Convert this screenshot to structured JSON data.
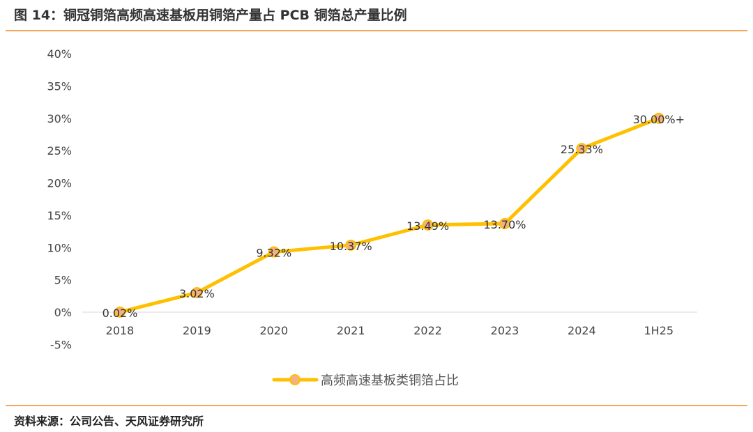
{
  "title": "图 14：铜冠铜箔高频高速基板用铜箔产量占 PCB 铜箔总产量比例",
  "source": "资料来源：公司公告、天风证券研究所",
  "colors": {
    "line": "#FFC000",
    "marker": "#F4B183",
    "rule": "#F08A24"
  },
  "chart_data": {
    "type": "line",
    "title": "铜冠铜箔高频高速基板用铜箔产量占 PCB 铜箔总产量比例",
    "categories": [
      "2018",
      "2019",
      "2020",
      "2021",
      "2022",
      "2023",
      "2024",
      "1H25"
    ],
    "series": [
      {
        "name": "高频高速基板类铜箔占比",
        "values": [
          0.02,
          3.02,
          9.32,
          10.37,
          13.49,
          13.7,
          25.33,
          30.0
        ]
      }
    ],
    "data_labels": [
      "0.02%",
      "3.02%",
      "9.32%",
      "10.37%",
      "13.49%",
      "13.70%",
      "25.33%",
      "30.00%+"
    ],
    "ylim": [
      -5,
      40
    ],
    "yticks": [
      "-5%",
      "0%",
      "5%",
      "10%",
      "15%",
      "20%",
      "25%",
      "30%",
      "35%",
      "40%"
    ],
    "ytick_values": [
      -5,
      0,
      5,
      10,
      15,
      20,
      25,
      30,
      35,
      40
    ],
    "grid": false,
    "legend": "bottom"
  }
}
